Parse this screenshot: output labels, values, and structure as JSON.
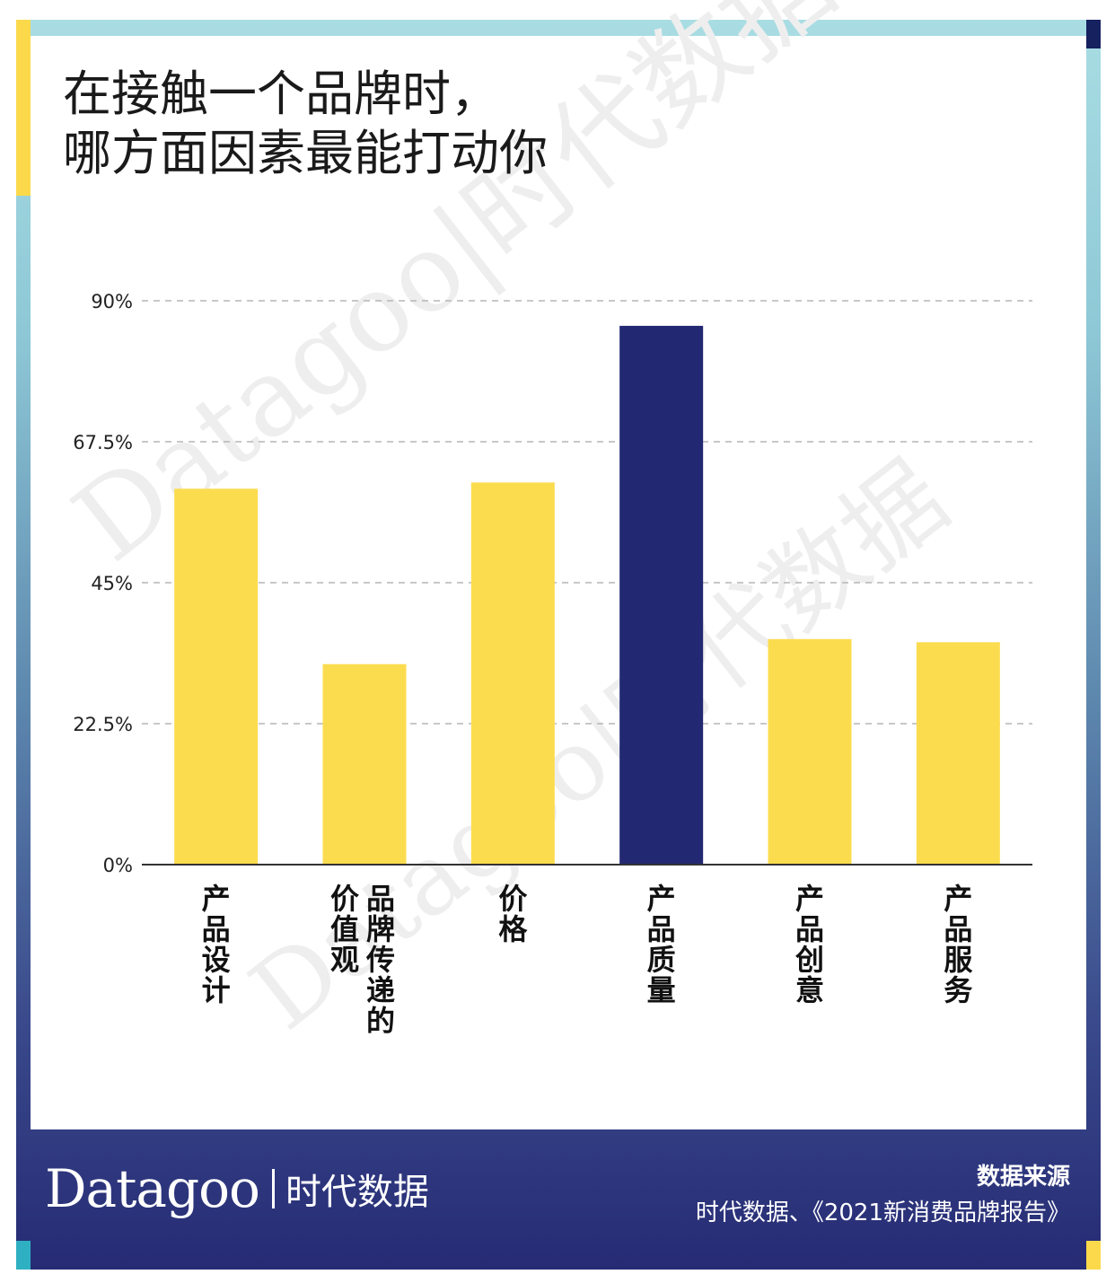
{
  "title": {
    "line1": "在接触一个品牌时，",
    "line2": "哪方面因素最能打动你"
  },
  "watermark": "Datagoo|时代数据",
  "chart_data": {
    "type": "bar",
    "categories": [
      "产品设计",
      "品牌传递的价值观",
      "价格",
      "产品质量",
      "产品创意",
      "产品服务"
    ],
    "category_label_columns": [
      [
        "产品设计"
      ],
      [
        "品牌传递的",
        "价值观"
      ],
      [
        "价格"
      ],
      [
        "产品质量"
      ],
      [
        "产品创意"
      ],
      [
        "产品服务"
      ]
    ],
    "values": [
      60,
      32,
      61,
      86,
      36,
      35.5
    ],
    "highlight_index": 3,
    "yticks": [
      "0%",
      "22.5%",
      "45%",
      "67.5%",
      "90%"
    ],
    "ytick_values": [
      0,
      22.5,
      45,
      67.5,
      90
    ],
    "ylim": [
      0,
      90
    ],
    "grid": true,
    "colors": {
      "bar": "#fcdc4f",
      "highlight": "#232872",
      "grid": "#b5b5b5",
      "axis": "#333333"
    }
  },
  "footer": {
    "logo_word": "Datagoo",
    "logo_cn": "时代数据",
    "source_title": "数据来源",
    "source_text": "时代数据、《2021新消费品牌报告》"
  }
}
